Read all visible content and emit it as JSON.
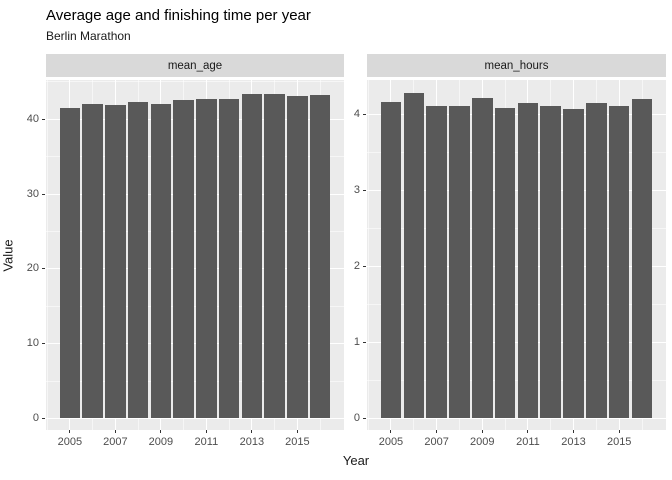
{
  "title": "Average age and finishing time per year",
  "subtitle": "Berlin Marathon",
  "axes": {
    "x_title": "Year",
    "y_title": "Value"
  },
  "chart_data": {
    "type": "bar",
    "title": "Average age and finishing time per year",
    "subtitle": "Berlin Marathon",
    "xlabel": "Year",
    "ylabel": "Value",
    "grid": true,
    "legend": false,
    "x": [
      2005,
      2006,
      2007,
      2008,
      2009,
      2010,
      2011,
      2012,
      2013,
      2014,
      2015,
      2016
    ],
    "x_tick_labels": [
      "2005",
      "2007",
      "2009",
      "2011",
      "2013",
      "2015"
    ],
    "x_major_ticks": [
      2005,
      2007,
      2009,
      2011,
      2013,
      2015
    ],
    "x_minor_ticks": [
      2004,
      2006,
      2008,
      2010,
      2012,
      2014,
      2016
    ],
    "bar_width_years": 0.9,
    "facets": [
      {
        "label": "mean_age",
        "values": [
          41.5,
          42.0,
          41.9,
          42.2,
          42.0,
          42.5,
          42.7,
          42.7,
          43.3,
          43.3,
          43.1,
          43.2
        ],
        "y_ticks": [
          0,
          10,
          20,
          30,
          40
        ],
        "ylim": [
          0,
          45.2
        ]
      },
      {
        "label": "mean_hours",
        "values": [
          4.16,
          4.27,
          4.11,
          4.11,
          4.21,
          4.08,
          4.15,
          4.1,
          4.06,
          4.14,
          4.11,
          4.2
        ],
        "y_ticks": [
          0,
          1,
          2,
          3,
          4
        ],
        "ylim": [
          0,
          4.45
        ]
      }
    ],
    "colors": {
      "bar": "#595959",
      "panel_bg": "#ebebeb",
      "strip_bg": "#d9d9d9",
      "gridline_major": "#ffffff",
      "gridline_minor": "rgba(255,255,255,0.55)",
      "axis_text": "#4d4d4d",
      "tick_mark": "#333333"
    }
  }
}
